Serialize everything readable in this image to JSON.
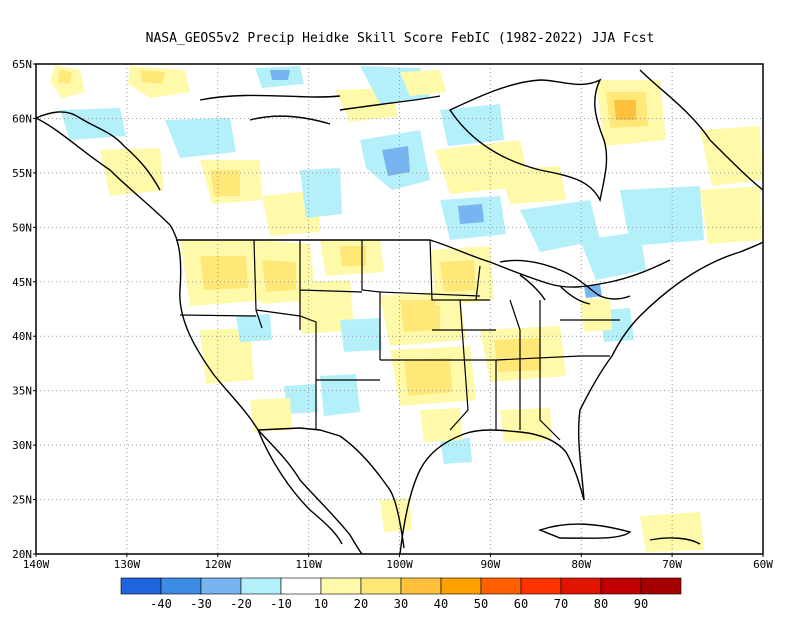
{
  "title": "NASA_GEOS5v2 Precip Heidke Skill Score FebIC (1982-2022) JJA Fcst",
  "map": {
    "lon_range": [
      -140,
      -60
    ],
    "lat_range": [
      20,
      65
    ],
    "grid": true,
    "lat_labels": [
      "65N",
      "60N",
      "55N",
      "50N",
      "45N",
      "40N",
      "35N",
      "30N",
      "25N",
      "20N"
    ],
    "lat_values": [
      65,
      60,
      55,
      50,
      45,
      40,
      35,
      30,
      25,
      20
    ],
    "lon_labels": [
      "140W",
      "130W",
      "120W",
      "110W",
      "100W",
      "90W",
      "80W",
      "70W",
      "60W"
    ],
    "lon_values": [
      -140,
      -130,
      -120,
      -110,
      -100,
      -90,
      -80,
      -70,
      -60
    ]
  },
  "colorbar": {
    "labels": [
      "-40",
      "-30",
      "-20",
      "-10",
      "10",
      "20",
      "30",
      "40",
      "50",
      "60",
      "70",
      "80",
      "90"
    ],
    "colors": [
      "#1e64dc",
      "#3c8ce6",
      "#78b4f0",
      "#b4f0fa",
      "#ffffff",
      "#fffaaa",
      "#ffe878",
      "#ffc03c",
      "#ffa000",
      "#ff6000",
      "#ff3200",
      "#e11400",
      "#c00000",
      "#a50000"
    ]
  },
  "colors": {
    "land_outline": "#000000",
    "grid": "#9a9a9a",
    "negative_light": "#b4f0fa",
    "negative_mid": "#78b4f0",
    "positive_light": "#fffaaa",
    "positive_mid": "#ffe878",
    "positive_strong": "#ffc03c"
  }
}
